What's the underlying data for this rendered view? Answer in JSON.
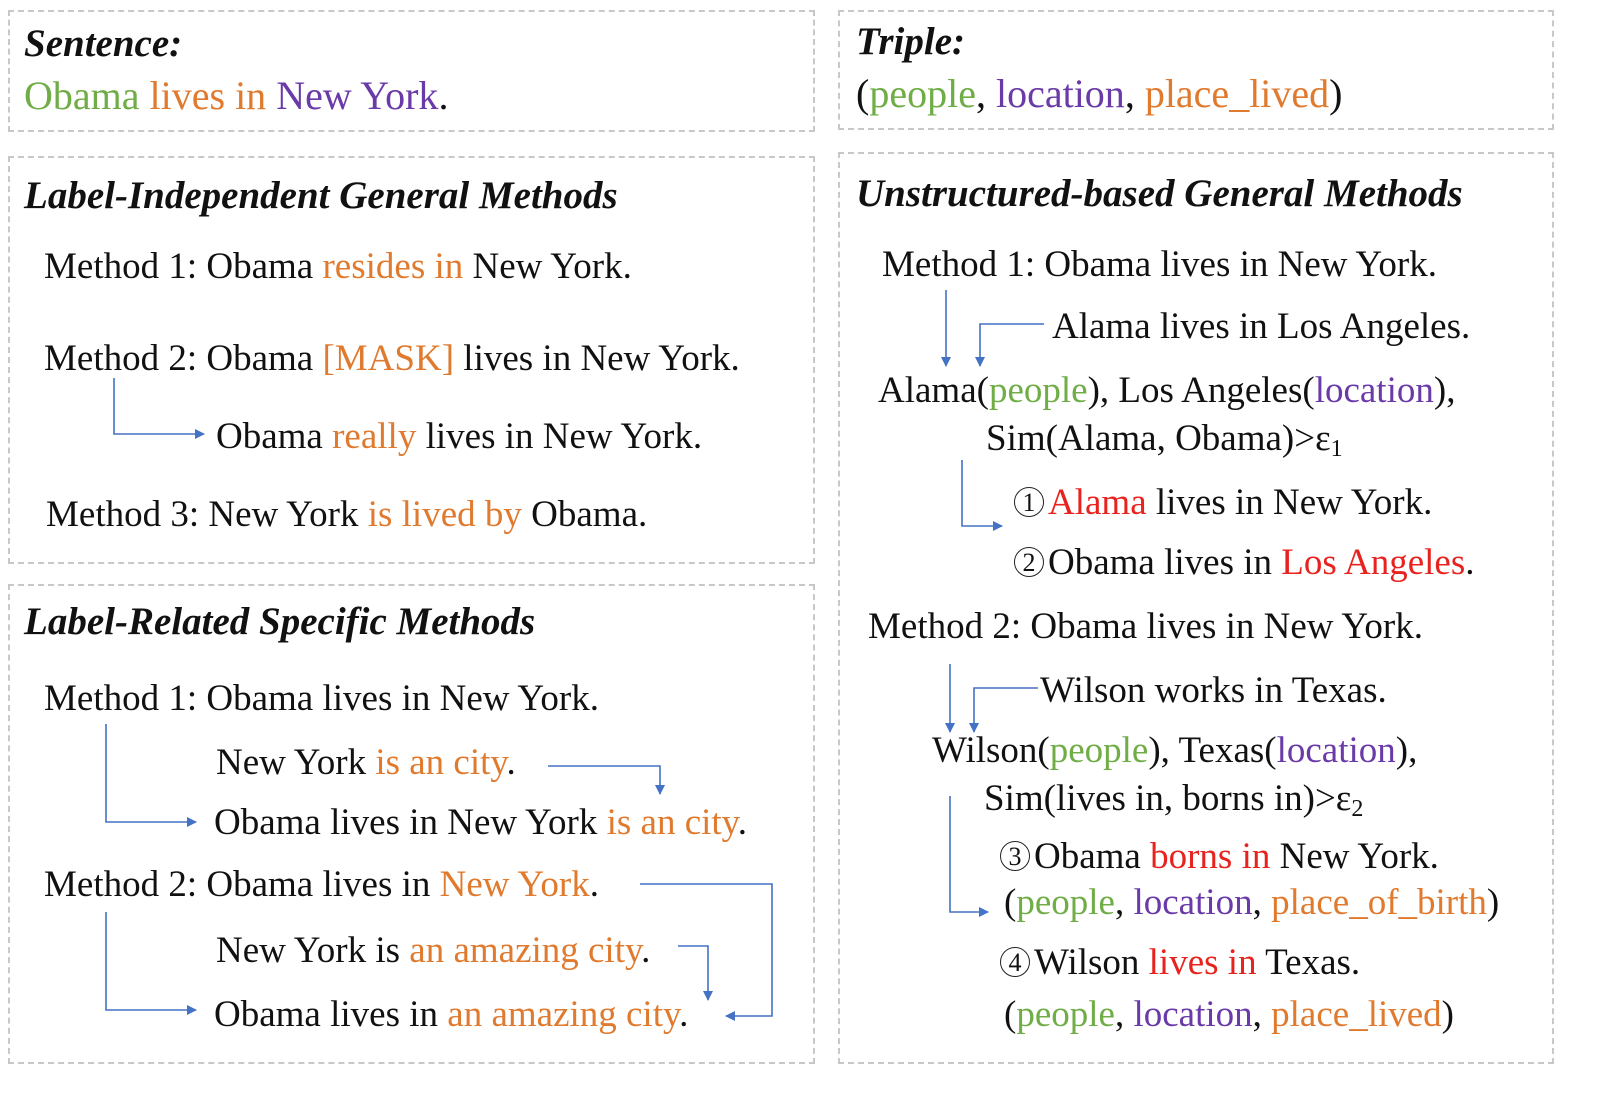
{
  "sentence": {
    "heading": "Sentence:",
    "parts": [
      "Obama",
      " ",
      "lives in",
      " ",
      "New York",
      "."
    ]
  },
  "triple": {
    "heading": "Triple:",
    "parts": [
      "(",
      "people",
      ", ",
      "location",
      ", ",
      "place_lived",
      ")"
    ]
  },
  "label_independent": {
    "heading": "Label-Independent General Methods",
    "m1": [
      "Method 1: Obama ",
      "resides in",
      " New York."
    ],
    "m2": [
      "Method 2: Obama ",
      "[MASK]",
      " lives in New York."
    ],
    "m2_result": [
      "Obama ",
      "really",
      " lives in New York."
    ],
    "m3": [
      "Method 3: New York ",
      "is lived by",
      " Obama."
    ]
  },
  "label_related": {
    "heading": "Label-Related Specific Methods",
    "m1": "Method 1: Obama lives in New York.",
    "m1_aux": [
      "New York ",
      "is an city",
      "."
    ],
    "m1_result": [
      "Obama lives in New York ",
      "is an city",
      "."
    ],
    "m2": [
      "Method 2: Obama lives in ",
      "New York",
      "."
    ],
    "m2_aux": [
      "New York is ",
      "an amazing city",
      "."
    ],
    "m2_result": [
      "Obama lives in ",
      "an amazing city",
      "."
    ]
  },
  "unstructured": {
    "heading": "Unstructured-based General Methods",
    "m1": "Method 1: Obama lives in New York.",
    "m1_aux": "Alama lives in Los Angeles.",
    "m1_ent": [
      "Alama(",
      "people",
      "), Los Angeles(",
      "location",
      "),"
    ],
    "m1_sim": "Sim(Alama, Obama)>ε",
    "m1_sim_sub": "1",
    "r1_num": "1",
    "r1": [
      "Alama",
      " lives in New York."
    ],
    "r2_num": "2",
    "r2": [
      "Obama lives in ",
      "Los Angeles",
      "."
    ],
    "m2": "Method 2: Obama lives in New York.",
    "m2_aux": "Wilson works in Texas.",
    "m2_ent": [
      "Wilson(",
      "people",
      "), Texas(",
      "location",
      "),"
    ],
    "m2_sim": "Sim(lives in, borns in)>ε",
    "m2_sim_sub": "2",
    "r3_num": "3",
    "r3": [
      "Obama ",
      "borns in",
      " New York."
    ],
    "r3_triple": [
      "(",
      "people",
      ", ",
      "location",
      ", ",
      "place_of_birth",
      ")"
    ],
    "r4_num": "4",
    "r4": [
      "Wilson ",
      "lives in",
      " Texas."
    ],
    "r4_triple": [
      "(",
      "people",
      ", ",
      "location",
      ", ",
      "place_lived",
      ")"
    ]
  },
  "colors": {
    "entity_head": "#70ad47",
    "entity_tail": "#6a3aa8",
    "relation": "#e07a2e",
    "replaced": "#e8231f",
    "arrow": "#4472c4",
    "border": "#c8c8c8"
  }
}
